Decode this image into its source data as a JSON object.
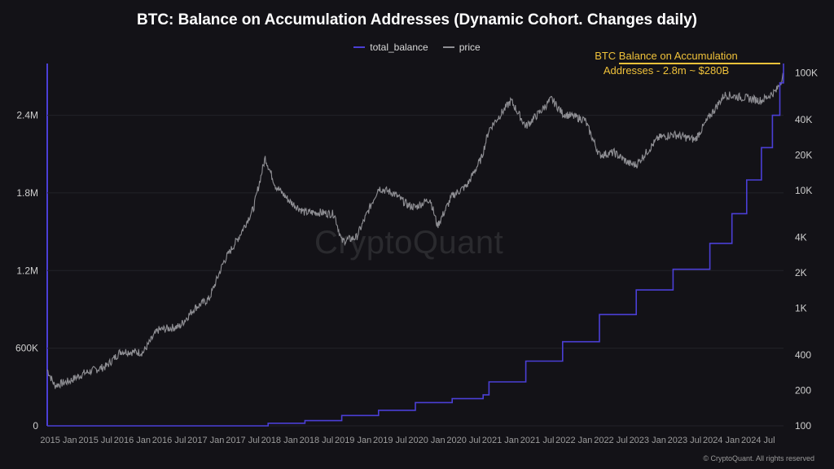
{
  "chart_data": {
    "type": "line",
    "title": "BTC: Balance on Accumulation Addresses (Dynamic Cohort. Changes daily)",
    "xlabel": "",
    "ylabel_left": "",
    "ylabel_right": "",
    "x_ticks": [
      "2015 Jan",
      "2015 Jul",
      "2016 Jan",
      "2016 Jul",
      "2017 Jan",
      "2017 Jul",
      "2018 Jan",
      "2018 Jul",
      "2019 Jan",
      "2019 Jul",
      "2020 Jan",
      "2020 Jul",
      "2021 Jan",
      "2021 Jul",
      "2022 Jan",
      "2022 Jul",
      "2023 Jan",
      "2023 Jul",
      "2024 Jan",
      "2024 Jul"
    ],
    "y_left_ticks": [
      "0",
      "600K",
      "1.2M",
      "1.8M",
      "2.4M"
    ],
    "y_left_range": [
      0,
      2800000
    ],
    "y_right_ticks": [
      "100",
      "200",
      "400",
      "1K",
      "2K",
      "4K",
      "10K",
      "20K",
      "40K",
      "100K"
    ],
    "y_right_range": [
      100,
      120000
    ],
    "y_right_scale": "log",
    "legend_position": "top-center",
    "grid": true,
    "annotation": {
      "text_line1": "BTC Balance on Accumulation",
      "text_line2": "Addresses - 2.8m ~ $280B"
    },
    "colors": {
      "total_balance": "#4b3fd6",
      "price": "#8f8f94",
      "annotation": "#f0c23a"
    },
    "series": [
      {
        "name": "total_balance",
        "axis": "left",
        "x": [
          2015.0,
          2016.0,
          2017.0,
          2017.5,
          2018.0,
          2018.5,
          2019.0,
          2019.5,
          2020.0,
          2020.5,
          2020.92,
          2021.0,
          2021.5,
          2022.0,
          2022.5,
          2023.0,
          2023.5,
          2024.0,
          2024.3,
          2024.5,
          2024.7,
          2024.85,
          2024.95,
          2025.0
        ],
        "values": [
          0,
          0,
          0,
          0,
          20000,
          40000,
          80000,
          120000,
          180000,
          210000,
          240000,
          340000,
          500000,
          650000,
          860000,
          1050000,
          1210000,
          1410000,
          1640000,
          1900000,
          2150000,
          2400000,
          2650000,
          2800000
        ]
      },
      {
        "name": "price",
        "axis": "right",
        "x": [
          2015.0,
          2015.1,
          2015.3,
          2015.5,
          2015.8,
          2016.0,
          2016.3,
          2016.5,
          2016.8,
          2017.0,
          2017.2,
          2017.4,
          2017.6,
          2017.8,
          2017.96,
          2018.1,
          2018.3,
          2018.5,
          2018.7,
          2018.9,
          2019.0,
          2019.2,
          2019.5,
          2019.7,
          2019.9,
          2020.0,
          2020.2,
          2020.3,
          2020.5,
          2020.7,
          2020.9,
          2021.0,
          2021.3,
          2021.5,
          2021.7,
          2021.85,
          2022.0,
          2022.3,
          2022.5,
          2022.7,
          2022.9,
          2023.0,
          2023.3,
          2023.5,
          2023.8,
          2024.0,
          2024.2,
          2024.5,
          2024.7,
          2024.9,
          2025.0
        ],
        "values": [
          300,
          220,
          240,
          280,
          320,
          430,
          420,
          650,
          700,
          1000,
          1200,
          2500,
          4000,
          7000,
          19000,
          11000,
          8000,
          6500,
          6500,
          6300,
          3700,
          4000,
          10500,
          9500,
          7500,
          7200,
          8500,
          5000,
          9000,
          11000,
          19000,
          33000,
          58000,
          35000,
          47000,
          60000,
          45000,
          40000,
          20000,
          21000,
          17000,
          16500,
          28000,
          30000,
          27000,
          43000,
          65000,
          61000,
          58000,
          70000,
          96000
        ]
      }
    ]
  },
  "footer": {
    "copyright": "© CryptoQuant. All rights reserved"
  },
  "watermark": {
    "text": "CryptoQuant"
  }
}
